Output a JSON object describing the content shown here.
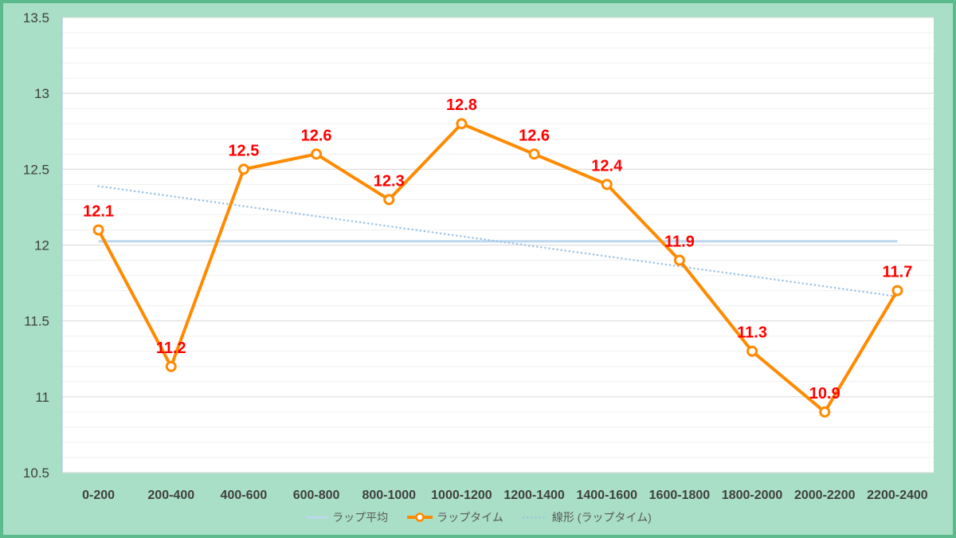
{
  "colors": {
    "frame_background": "#a9dfc6",
    "frame_border": "#5dba8c",
    "plot_background": "#ffffff",
    "data_label": "#ff0000"
  },
  "chart_data": {
    "type": "line",
    "categories": [
      "0-200",
      "200-400",
      "400-600",
      "600-800",
      "800-1000",
      "1000-1200",
      "1200-1400",
      "1400-1600",
      "1600-1800",
      "1800-2000",
      "2000-2200",
      "2200-2400"
    ],
    "series": [
      {
        "name": "ラップ平均",
        "values": [
          12.025,
          12.025,
          12.025,
          12.025,
          12.025,
          12.025,
          12.025,
          12.025,
          12.025,
          12.025,
          12.025,
          12.025
        ],
        "color": "#bdd7ee",
        "markers": false,
        "data_labels": false
      },
      {
        "name": "ラップタイム",
        "values": [
          12.1,
          11.2,
          12.5,
          12.6,
          12.3,
          12.8,
          12.6,
          12.4,
          11.9,
          11.3,
          10.9,
          11.7
        ],
        "color": "#ff8a00",
        "markers": true,
        "data_labels": true
      }
    ],
    "trendline": {
      "name": "線形 (ラップタイム)",
      "type": "linear",
      "series_index": 1,
      "color": "#9dc3e6",
      "line_style": "dotted"
    },
    "ylim": [
      10.5,
      13.5
    ],
    "y_ticks": [
      "10.5",
      "11",
      "11.5",
      "12",
      "12.5",
      "13",
      "13.5"
    ],
    "minor_grid_step": 0.1,
    "grid": true,
    "legend": "bottom"
  }
}
